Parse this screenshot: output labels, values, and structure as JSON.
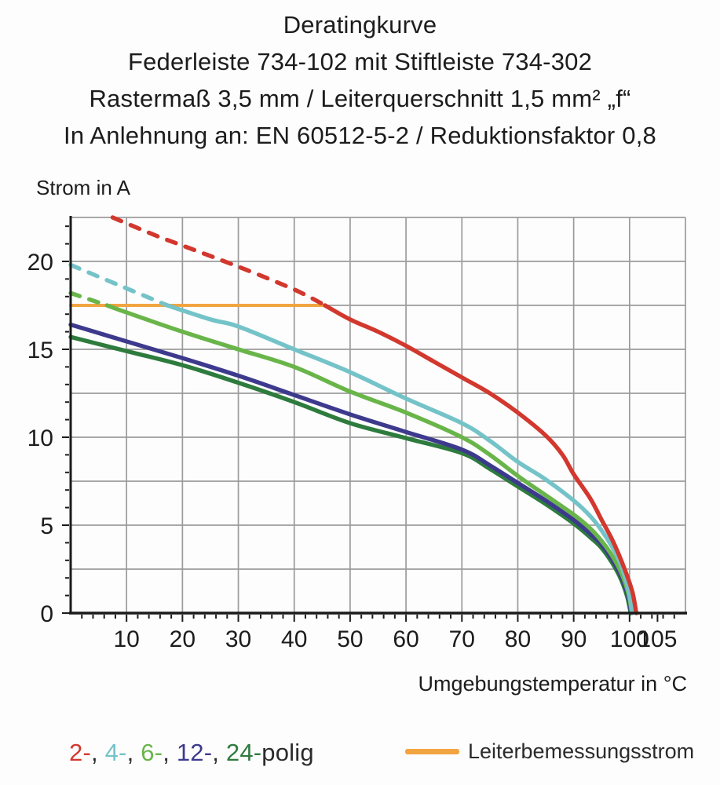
{
  "title": {
    "line1": "Deratingkurve",
    "line2": "Federleiste 734-102 mit Stiftleiste 734-302",
    "line3": "Rastermaß 3,5 mm / Leiterquerschnitt 1,5 mm² „f“",
    "line4": "In Anlehnung an: EN 60512-5-2 / Reduktionsfaktor 0,8"
  },
  "colors": {
    "red": "#d2382e",
    "cyan": "#74c3c8",
    "light_green": "#69b54a",
    "navy": "#3d3a8e",
    "dark_green": "#2e7b3e",
    "orange": "#f2a440",
    "grid": "#9b9b9b",
    "axis": "#1b1b1b",
    "text": "#1c1c1c"
  },
  "legend": {
    "pole_items": [
      {
        "label": "2-",
        "series": "2-polig",
        "color": "#d2382e"
      },
      {
        "label": "4-",
        "series": "4-polig",
        "color": "#74c3c8"
      },
      {
        "label": "6-",
        "series": "6-polig",
        "color": "#69b54a"
      },
      {
        "label": "12-",
        "series": "12-polig",
        "color": "#3d3a8e"
      },
      {
        "label": "24-",
        "series": "24-polig",
        "color": "#2e7b3e"
      }
    ],
    "separator": ", ",
    "suffix": "polig",
    "rated_label": "Leiterbemessungsstrom"
  },
  "chart_data": {
    "type": "line",
    "title": "Deratingkurve",
    "xlabel": "Umgebungstemperatur in °C",
    "ylabel": "Strom in A",
    "xlim": [
      0,
      110
    ],
    "ylim": [
      0,
      22.5
    ],
    "grid": true,
    "grid_x_step": 10,
    "grid_y_step": 2.5,
    "x_major_ticks": [
      10,
      20,
      30,
      40,
      50,
      60,
      70,
      80,
      90,
      100,
      105
    ],
    "x_minor_step": 2,
    "y_major_ticks": [
      0,
      5,
      10,
      15,
      20
    ],
    "y_minor_step": 1,
    "rated_current_line": {
      "name": "Leiterbemessungsstrom",
      "value": 17.5,
      "x_range": [
        0,
        45.5
      ],
      "color": "#f2a440",
      "note": "dashed curve segments lie above this rated current"
    },
    "series": [
      {
        "name": "2-polig",
        "poles": 2,
        "color": "#d2382e",
        "dashed_points": [
          [
            7.5,
            22.5
          ],
          [
            15,
            21.5
          ],
          [
            20,
            20.9
          ],
          [
            30,
            19.7
          ],
          [
            40,
            18.4
          ],
          [
            45.5,
            17.5
          ]
        ],
        "solid_points": [
          [
            45.5,
            17.5
          ],
          [
            50,
            16.7
          ],
          [
            55,
            16.0
          ],
          [
            60,
            15.2
          ],
          [
            65,
            14.3
          ],
          [
            70,
            13.4
          ],
          [
            75,
            12.5
          ],
          [
            80,
            11.4
          ],
          [
            85,
            10.1
          ],
          [
            88,
            9.0
          ],
          [
            90,
            7.9
          ],
          [
            93,
            6.5
          ],
          [
            95,
            5.3
          ],
          [
            97,
            4.1
          ],
          [
            99,
            2.6
          ],
          [
            100.5,
            1.2
          ],
          [
            101.2,
            0
          ]
        ]
      },
      {
        "name": "4-polig",
        "poles": 4,
        "color": "#74c3c8",
        "dashed_points": [
          [
            0,
            19.8
          ],
          [
            9,
            18.6
          ],
          [
            17.3,
            17.5
          ]
        ],
        "solid_points": [
          [
            17.3,
            17.5
          ],
          [
            25,
            16.7
          ],
          [
            30,
            16.3
          ],
          [
            40,
            15.0
          ],
          [
            50,
            13.7
          ],
          [
            60,
            12.2
          ],
          [
            70,
            10.8
          ],
          [
            75,
            9.8
          ],
          [
            80,
            8.6
          ],
          [
            85,
            7.6
          ],
          [
            90,
            6.4
          ],
          [
            93,
            5.5
          ],
          [
            95,
            4.7
          ],
          [
            97,
            3.7
          ],
          [
            98.5,
            2.7
          ],
          [
            99.8,
            1.3
          ],
          [
            100.5,
            0
          ]
        ]
      },
      {
        "name": "6-polig",
        "poles": 6,
        "color": "#69b54a",
        "dashed_points": [
          [
            0,
            18.2
          ],
          [
            6.5,
            17.5
          ]
        ],
        "solid_points": [
          [
            6.5,
            17.5
          ],
          [
            10,
            17.1
          ],
          [
            20,
            16.0
          ],
          [
            30,
            15.0
          ],
          [
            40,
            14.0
          ],
          [
            50,
            12.6
          ],
          [
            60,
            11.4
          ],
          [
            70,
            10.0
          ],
          [
            75,
            9.0
          ],
          [
            80,
            7.8
          ],
          [
            85,
            6.7
          ],
          [
            90,
            5.6
          ],
          [
            93,
            4.8
          ],
          [
            95,
            4.1
          ],
          [
            97,
            3.2
          ],
          [
            98.5,
            2.3
          ],
          [
            99.8,
            1.1
          ],
          [
            100.4,
            0
          ]
        ]
      },
      {
        "name": "12-polig",
        "poles": 12,
        "color": "#3d3a8e",
        "dashed_points": null,
        "solid_points": [
          [
            0,
            16.4
          ],
          [
            10,
            15.45
          ],
          [
            20,
            14.5
          ],
          [
            30,
            13.5
          ],
          [
            40,
            12.4
          ],
          [
            50,
            11.3
          ],
          [
            60,
            10.3
          ],
          [
            70,
            9.3
          ],
          [
            75,
            8.4
          ],
          [
            80,
            7.4
          ],
          [
            85,
            6.4
          ],
          [
            90,
            5.3
          ],
          [
            93,
            4.5
          ],
          [
            95,
            3.9
          ],
          [
            97,
            3.0
          ],
          [
            98.5,
            2.1
          ],
          [
            99.7,
            1.0
          ],
          [
            100.3,
            0
          ]
        ]
      },
      {
        "name": "24-polig",
        "poles": 24,
        "color": "#2e7b3e",
        "dashed_points": null,
        "solid_points": [
          [
            0,
            15.7
          ],
          [
            10,
            14.9
          ],
          [
            20,
            14.1
          ],
          [
            30,
            13.1
          ],
          [
            40,
            12.0
          ],
          [
            50,
            10.8
          ],
          [
            60,
            9.95
          ],
          [
            70,
            9.1
          ],
          [
            75,
            8.2
          ],
          [
            80,
            7.2
          ],
          [
            85,
            6.2
          ],
          [
            90,
            5.1
          ],
          [
            93,
            4.3
          ],
          [
            95,
            3.7
          ],
          [
            97,
            2.8
          ],
          [
            98.5,
            1.9
          ],
          [
            99.6,
            0.9
          ],
          [
            100.2,
            0
          ]
        ]
      }
    ],
    "legend_position": "bottom"
  }
}
